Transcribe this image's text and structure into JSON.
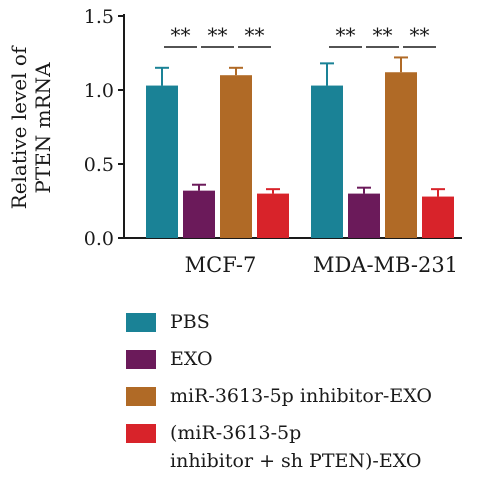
{
  "chart_data": {
    "type": "bar",
    "title": "",
    "xlabel": "",
    "ylabel": "Relative level of\nPTEN mRNA",
    "ylim": [
      0,
      1.5
    ],
    "yticks": [
      "0.0",
      "0.5",
      "1.0",
      "1.5"
    ],
    "categories": [
      "MCF-7",
      "MDA-MB-231"
    ],
    "series": [
      {
        "name": "PBS",
        "color": "#1a8296",
        "values": [
          1.03,
          1.03
        ],
        "errors": [
          0.12,
          0.15
        ]
      },
      {
        "name": "EXO",
        "color": "#6b1a5a",
        "values": [
          0.32,
          0.3
        ],
        "errors": [
          0.04,
          0.04
        ]
      },
      {
        "name": "miR-3613-5p inhibitor-EXO",
        "color": "#b06a26",
        "values": [
          1.1,
          1.12
        ],
        "errors": [
          0.05,
          0.1
        ]
      },
      {
        "name": "(miR-3613-5p\ninhibitor + sh PTEN)-EXO",
        "color": "#d8232a",
        "values": [
          0.3,
          0.28
        ],
        "errors": [
          0.03,
          0.05
        ]
      }
    ],
    "significance": [
      {
        "group": 0,
        "from": 0,
        "to": 1,
        "label": "**"
      },
      {
        "group": 0,
        "from": 1,
        "to": 2,
        "label": "**"
      },
      {
        "group": 0,
        "from": 2,
        "to": 3,
        "label": "**"
      },
      {
        "group": 1,
        "from": 0,
        "to": 1,
        "label": "**"
      },
      {
        "group": 1,
        "from": 1,
        "to": 2,
        "label": "**"
      },
      {
        "group": 1,
        "from": 2,
        "to": 3,
        "label": "**"
      }
    ],
    "legend_position": "bottom",
    "grid": false
  }
}
